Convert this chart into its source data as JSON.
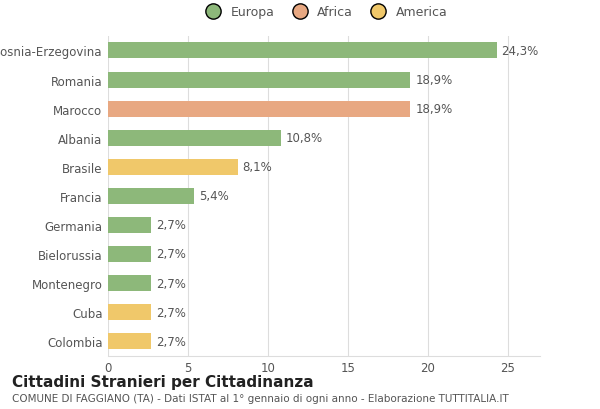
{
  "categories": [
    "Colombia",
    "Cuba",
    "Montenegro",
    "Bielorussia",
    "Germania",
    "Francia",
    "Brasile",
    "Albania",
    "Marocco",
    "Romania",
    "Bosnia-Erzegovina"
  ],
  "values": [
    2.7,
    2.7,
    2.7,
    2.7,
    2.7,
    5.4,
    8.1,
    10.8,
    18.9,
    18.9,
    24.3
  ],
  "labels": [
    "2,7%",
    "2,7%",
    "2,7%",
    "2,7%",
    "2,7%",
    "5,4%",
    "8,1%",
    "10,8%",
    "18,9%",
    "18,9%",
    "24,3%"
  ],
  "colors": [
    "#f0c86a",
    "#f0c86a",
    "#8db87a",
    "#8db87a",
    "#8db87a",
    "#8db87a",
    "#f0c86a",
    "#8db87a",
    "#e8a882",
    "#8db87a",
    "#8db87a"
  ],
  "legend_labels": [
    "Europa",
    "Africa",
    "America"
  ],
  "legend_colors": [
    "#8db87a",
    "#e8a882",
    "#f0c86a"
  ],
  "title": "Cittadini Stranieri per Cittadinanza",
  "subtitle": "COMUNE DI FAGGIANO (TA) - Dati ISTAT al 1° gennaio di ogni anno - Elaborazione TUTTITALIA.IT",
  "xlim": [
    0,
    27
  ],
  "bg_color": "#ffffff",
  "grid_color": "#dddddd",
  "bar_height": 0.55,
  "label_fontsize": 8.5,
  "tick_fontsize": 8.5,
  "title_fontsize": 11,
  "subtitle_fontsize": 7.5,
  "text_color": "#555555"
}
